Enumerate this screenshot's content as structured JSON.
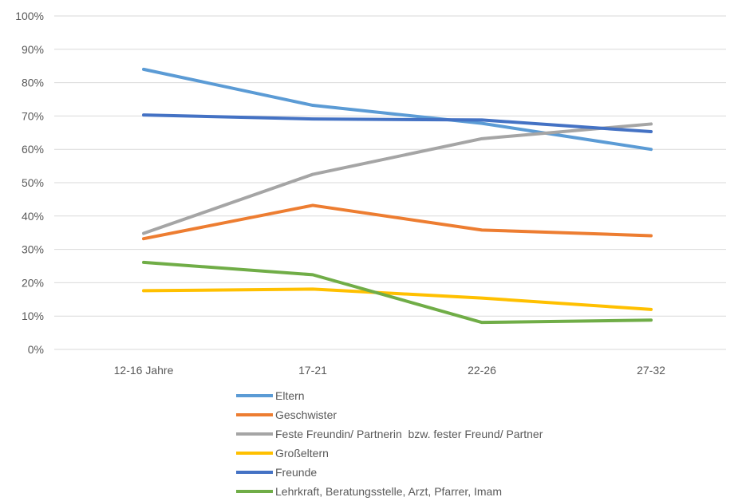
{
  "chart_data": {
    "type": "line",
    "categories": [
      "12-16 Jahre",
      "17-21",
      "22-26",
      "27-32"
    ],
    "y_ticks": [
      "0%",
      "10%",
      "20%",
      "30%",
      "40%",
      "50%",
      "60%",
      "70%",
      "80%",
      "90%",
      "100%"
    ],
    "ylim": [
      0,
      100
    ],
    "y_unit": "%",
    "grid": true,
    "legend_position": "bottom",
    "series": [
      {
        "name": "Eltern",
        "color": "#5b9bd5",
        "values": [
          84,
          73.2,
          67.8,
          60
        ]
      },
      {
        "name": "Geschwister",
        "color": "#ed7d31",
        "values": [
          33.2,
          43.2,
          35.8,
          34.1
        ]
      },
      {
        "name": "Feste Freundin/ Partnerin  bzw. fester Freund/ Partner",
        "color": "#a5a5a5",
        "values": [
          34.8,
          52.5,
          63.2,
          67.6
        ]
      },
      {
        "name": "Großeltern",
        "color": "#ffc000",
        "values": [
          17.6,
          18.1,
          15.4,
          12.0
        ]
      },
      {
        "name": "Freunde",
        "color": "#4472c4",
        "values": [
          70.3,
          69.1,
          68.8,
          65.3
        ]
      },
      {
        "name": "Lehrkraft, Beratungsstelle, Arzt, Pfarrer, Imam",
        "color": "#70ad47",
        "values": [
          26.1,
          22.4,
          8.1,
          8.8
        ]
      }
    ]
  }
}
